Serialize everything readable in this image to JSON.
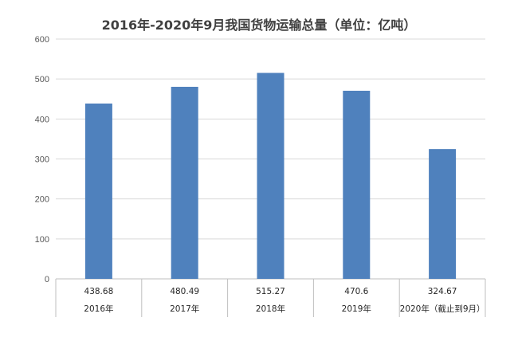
{
  "chart_data": {
    "type": "bar",
    "title": "2016年-2020年9月我国货物运输总量（单位：亿吨）",
    "categories": [
      "2016年",
      "2017年",
      "2018年",
      "2019年",
      "2020年（截止到9月）"
    ],
    "values": [
      438.68,
      480.49,
      515.27,
      470.6,
      324.67
    ],
    "value_labels": [
      "438.68",
      "480.49",
      "515.27",
      "470.6",
      "324.67"
    ],
    "yticks": [
      "0",
      "100",
      "200",
      "300",
      "400",
      "500",
      "600"
    ],
    "ylim": [
      0,
      600
    ],
    "grid": true,
    "legend": "none",
    "data_table": true,
    "bar_color": "#4F81BD",
    "grid_color": "#D9D9D9"
  }
}
